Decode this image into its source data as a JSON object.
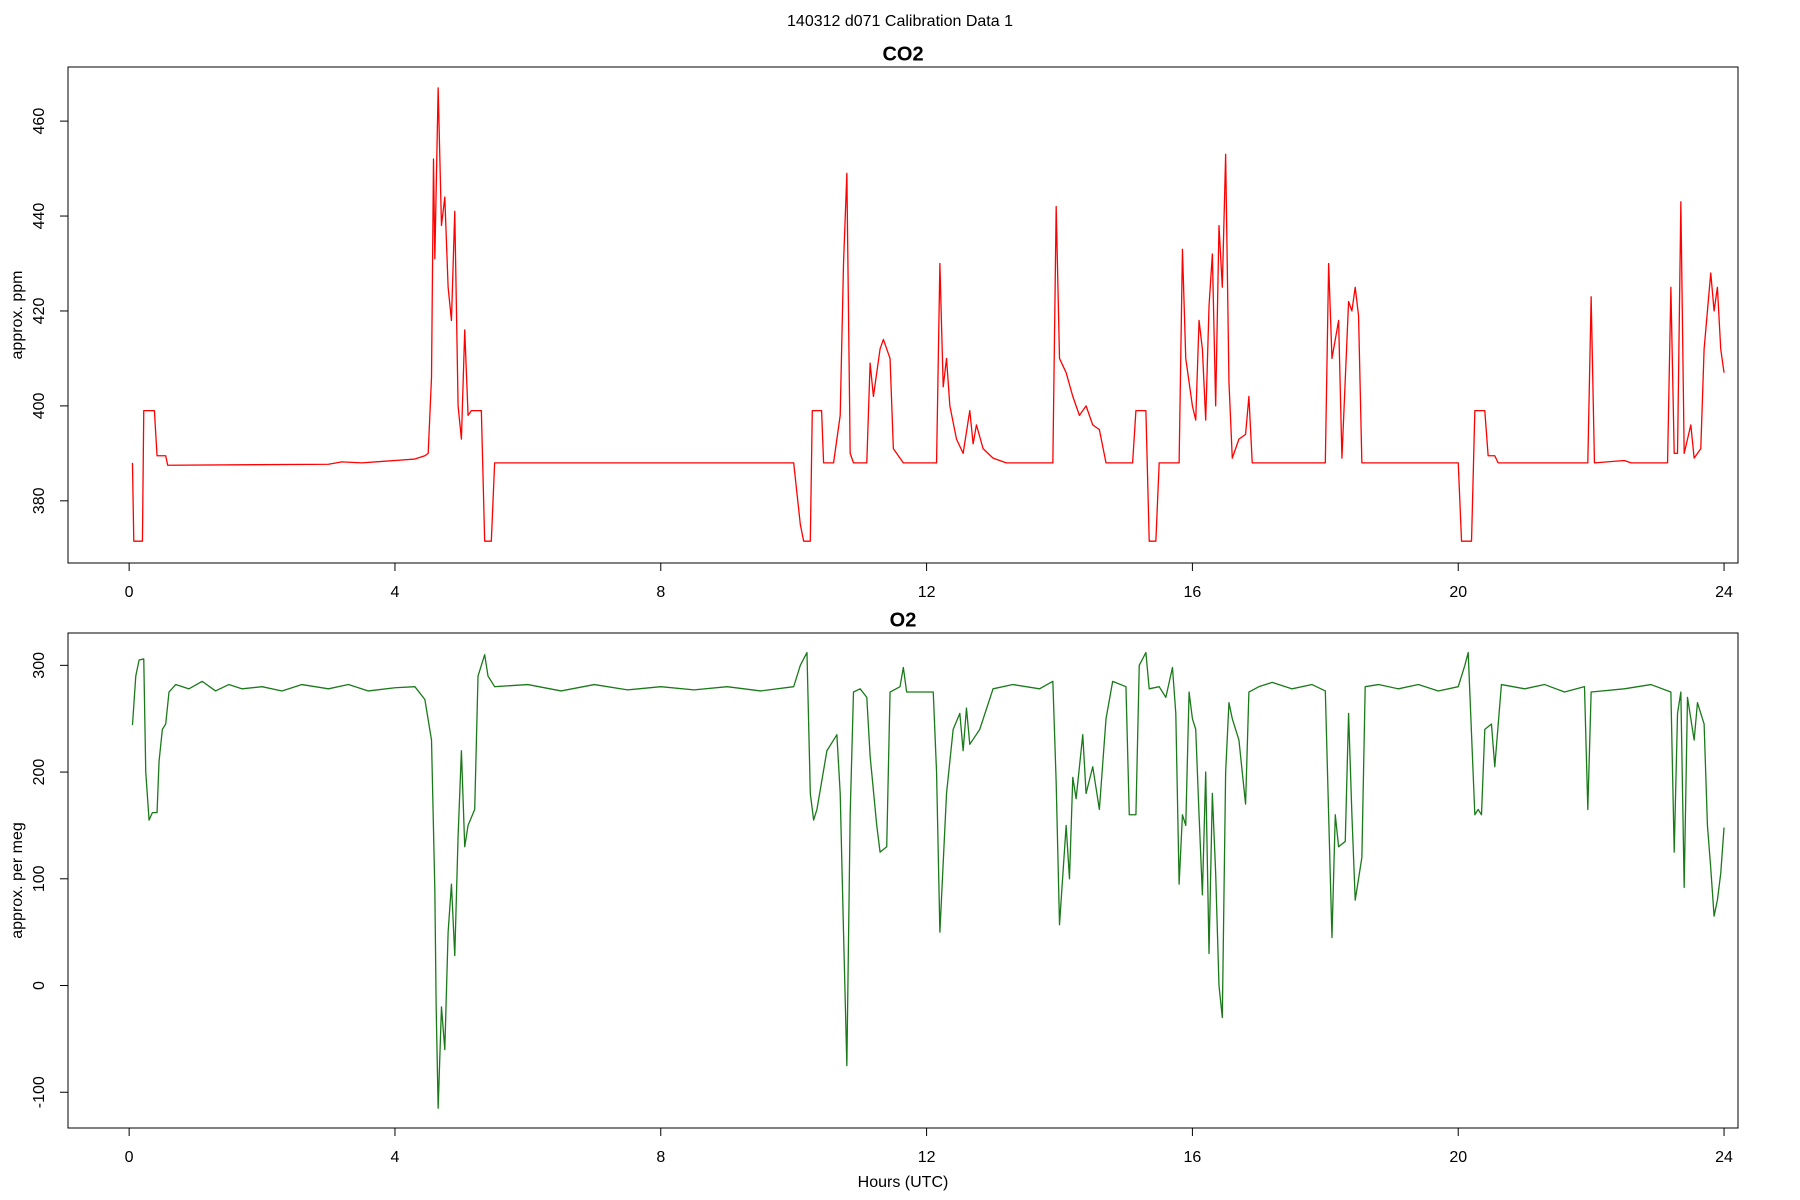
{
  "title": "140312   d071   Calibration Data 1",
  "chart_data": [
    {
      "type": "line",
      "title": "CO2",
      "ylabel": "approx. ppm",
      "xlim": [
        -0.92,
        24.21
      ],
      "xticks": [
        0,
        4,
        8,
        12,
        16,
        20,
        24
      ],
      "ylim": [
        366.9,
        471.4
      ],
      "yticks": [
        380,
        400,
        420,
        440,
        460
      ],
      "x": [
        0.05,
        0.07,
        0.2,
        0.22,
        0.38,
        0.42,
        0.55,
        0.58,
        3.0,
        3.2,
        3.5,
        3.8,
        4.0,
        4.3,
        4.45,
        4.5,
        4.55,
        4.58,
        4.6,
        4.65,
        4.7,
        4.75,
        4.8,
        4.85,
        4.9,
        4.95,
        5.0,
        5.05,
        5.1,
        5.15,
        5.3,
        5.35,
        5.45,
        5.5,
        10.0,
        10.1,
        10.15,
        10.25,
        10.28,
        10.42,
        10.45,
        10.6,
        10.7,
        10.75,
        10.8,
        10.85,
        10.9,
        11.1,
        11.15,
        11.2,
        11.3,
        11.35,
        11.45,
        11.5,
        11.6,
        11.65,
        12.15,
        12.2,
        12.25,
        12.3,
        12.35,
        12.45,
        12.55,
        12.65,
        12.7,
        12.75,
        12.85,
        13.0,
        13.2,
        13.9,
        13.95,
        14.0,
        14.1,
        14.2,
        14.3,
        14.4,
        14.5,
        14.6,
        14.7,
        15.1,
        15.15,
        15.3,
        15.35,
        15.45,
        15.5,
        15.8,
        15.85,
        15.9,
        16.0,
        16.05,
        16.1,
        16.15,
        16.2,
        16.25,
        16.3,
        16.35,
        16.4,
        16.45,
        16.5,
        16.55,
        16.6,
        16.7,
        16.8,
        16.85,
        16.9,
        18.0,
        18.05,
        18.1,
        18.2,
        18.25,
        18.35,
        18.4,
        18.45,
        18.5,
        18.55,
        20.0,
        20.05,
        20.2,
        20.25,
        20.4,
        20.45,
        20.55,
        20.6,
        21.95,
        22.0,
        22.05,
        22.5,
        22.6,
        23.15,
        23.2,
        23.25,
        23.3,
        23.35,
        23.4,
        23.5,
        23.55,
        23.65,
        23.7,
        23.75,
        23.8,
        23.85,
        23.9,
        23.95,
        24.0
      ],
      "series": [
        {
          "color": "#ff0000",
          "values": [
            388,
            371.5,
            371.5,
            399,
            399,
            389.5,
            389.5,
            387.5,
            387.7,
            388.2,
            388,
            388.3,
            388.5,
            388.8,
            389.5,
            390,
            406,
            452,
            431,
            467,
            438,
            444,
            425,
            418,
            441,
            400,
            393,
            416,
            398,
            399,
            399,
            371.5,
            371.5,
            388,
            388,
            375,
            371.5,
            371.5,
            399,
            399,
            388,
            388,
            398,
            430,
            449,
            390,
            388,
            388,
            409,
            402,
            412,
            414,
            410,
            391,
            389,
            388,
            388,
            430,
            404,
            410,
            400,
            393,
            390,
            399,
            392,
            396,
            391,
            389,
            388,
            388,
            442,
            410,
            407,
            402,
            398,
            400,
            396,
            395,
            388,
            388,
            399,
            399,
            371.5,
            371.5,
            388,
            388,
            433,
            410,
            400,
            397,
            418,
            412,
            397,
            421,
            432,
            400,
            438,
            425,
            453,
            405,
            389,
            393,
            394,
            402,
            388,
            388,
            430,
            410,
            418,
            389,
            422,
            420,
            425,
            419,
            388,
            388,
            371.5,
            371.5,
            399,
            399,
            389.5,
            389.5,
            388,
            388,
            423,
            388,
            388.5,
            388,
            388,
            425,
            390,
            390,
            443,
            390,
            396,
            389,
            391,
            412,
            420,
            428,
            420,
            425,
            412,
            407
          ]
        }
      ]
    },
    {
      "type": "line",
      "title": "O2",
      "ylabel": "approx. per meg",
      "xlabel": "Hours (UTC)",
      "xlim": [
        -0.92,
        24.21
      ],
      "xticks": [
        0,
        4,
        8,
        12,
        16,
        20,
        24
      ],
      "ylim": [
        -133.5,
        330.3
      ],
      "yticks": [
        -100,
        0,
        100,
        200,
        300
      ],
      "x": [
        0.05,
        0.1,
        0.15,
        0.22,
        0.25,
        0.3,
        0.35,
        0.42,
        0.45,
        0.5,
        0.55,
        0.6,
        0.7,
        0.9,
        1.1,
        1.3,
        1.5,
        1.7,
        2.0,
        2.3,
        2.6,
        3.0,
        3.3,
        3.6,
        4.0,
        4.3,
        4.45,
        4.55,
        4.6,
        4.62,
        4.65,
        4.7,
        4.75,
        4.8,
        4.85,
        4.9,
        4.95,
        5.0,
        5.05,
        5.1,
        5.2,
        5.25,
        5.35,
        5.4,
        5.5,
        6,
        6.5,
        7,
        7.5,
        8,
        8.5,
        9,
        9.5,
        10.0,
        10.1,
        10.2,
        10.25,
        10.3,
        10.35,
        10.5,
        10.6,
        10.65,
        10.7,
        10.75,
        10.8,
        10.85,
        10.9,
        11.0,
        11.1,
        11.15,
        11.25,
        11.3,
        11.4,
        11.45,
        11.6,
        11.65,
        11.7,
        12.1,
        12.15,
        12.2,
        12.3,
        12.4,
        12.5,
        12.55,
        12.6,
        12.65,
        12.8,
        13.0,
        13.3,
        13.7,
        13.9,
        13.95,
        14.0,
        14.1,
        14.15,
        14.2,
        14.25,
        14.35,
        14.4,
        14.5,
        14.6,
        14.7,
        14.8,
        15.0,
        15.05,
        15.15,
        15.2,
        15.3,
        15.35,
        15.5,
        15.6,
        15.7,
        15.75,
        15.8,
        15.85,
        15.9,
        15.95,
        16.0,
        16.05,
        16.1,
        16.15,
        16.2,
        16.25,
        16.3,
        16.35,
        16.4,
        16.45,
        16.5,
        16.55,
        16.6,
        16.7,
        16.8,
        16.85,
        17.0,
        17.2,
        17.5,
        17.8,
        18.0,
        18.05,
        18.1,
        18.15,
        18.2,
        18.3,
        18.35,
        18.4,
        18.45,
        18.55,
        18.6,
        18.8,
        19.1,
        19.4,
        19.7,
        20.0,
        20.1,
        20.15,
        20.25,
        20.3,
        20.35,
        20.4,
        20.5,
        20.55,
        20.65,
        21.0,
        21.3,
        21.6,
        21.9,
        21.95,
        22.0,
        22.5,
        22.9,
        23.2,
        23.25,
        23.3,
        23.35,
        23.4,
        23.45,
        23.55,
        23.6,
        23.7,
        23.75,
        23.8,
        23.85,
        23.9,
        23.95,
        24.0
      ],
      "series": [
        {
          "color": "#1a7a1a",
          "values": [
            244,
            290,
            305,
            306,
            200,
            155,
            162,
            162,
            210,
            240,
            245,
            275,
            282,
            278,
            285,
            276,
            282,
            278,
            280,
            276,
            282,
            278,
            282,
            276,
            279,
            280,
            268,
            230,
            90,
            -20,
            -115,
            -20,
            -60,
            50,
            95,
            28,
            140,
            220,
            130,
            150,
            165,
            290,
            310,
            290,
            280,
            282,
            276,
            282,
            277,
            280,
            277,
            280,
            276,
            280,
            300,
            312,
            180,
            155,
            165,
            220,
            230,
            235,
            180,
            50,
            -75,
            160,
            275,
            278,
            270,
            215,
            150,
            125,
            130,
            275,
            280,
            298,
            275,
            275,
            200,
            50,
            180,
            240,
            255,
            220,
            260,
            226,
            240,
            278,
            282,
            278,
            285,
            190,
            57,
            150,
            100,
            195,
            175,
            235,
            180,
            205,
            165,
            250,
            285,
            280,
            160,
            160,
            300,
            312,
            278,
            280,
            270,
            298,
            255,
            95,
            160,
            150,
            275,
            250,
            240,
            160,
            85,
            200,
            30,
            180,
            105,
            0,
            -30,
            200,
            265,
            250,
            230,
            170,
            275,
            280,
            284,
            278,
            282,
            276,
            160,
            45,
            160,
            130,
            135,
            255,
            160,
            80,
            120,
            280,
            282,
            278,
            282,
            276,
            280,
            300,
            312,
            160,
            165,
            160,
            240,
            245,
            205,
            282,
            278,
            282,
            275,
            280,
            165,
            275,
            278,
            282,
            275,
            125,
            255,
            275,
            92,
            270,
            230,
            265,
            245,
            150,
            110,
            65,
            80,
            105,
            148
          ]
        }
      ]
    }
  ]
}
